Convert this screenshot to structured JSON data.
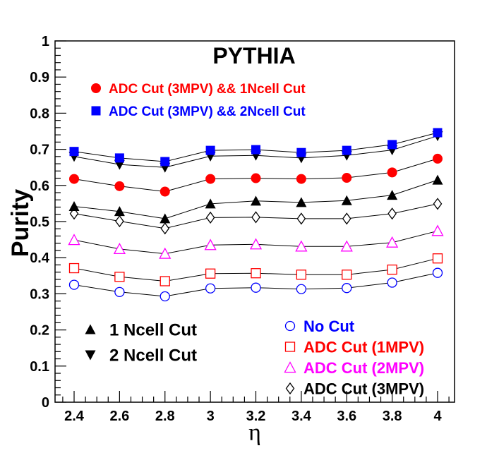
{
  "chart_data": {
    "type": "line",
    "title": "PYTHIA",
    "xlabel": "η",
    "ylabel": "Purity",
    "xlim": [
      2.4,
      4.0
    ],
    "ylim": [
      0,
      1
    ],
    "x": [
      2.4,
      2.6,
      2.8,
      3.0,
      3.2,
      3.4,
      3.6,
      3.8,
      4.0
    ],
    "x_tick_labels": [
      "2.4",
      "2.6",
      "2.8",
      "3",
      "3.2",
      "3.4",
      "3.6",
      "3.8",
      "4"
    ],
    "y_tick_labels": [
      "0",
      "0.1",
      "0.2",
      "0.3",
      "0.4",
      "0.5",
      "0.6",
      "0.7",
      "0.8",
      "0.9",
      "1"
    ],
    "grid": false,
    "series": [
      {
        "key": "nocut",
        "name": "No Cut",
        "color": "#0000ff",
        "marker": "open-circle",
        "values": [
          0.325,
          0.305,
          0.293,
          0.315,
          0.317,
          0.313,
          0.316,
          0.331,
          0.358
        ]
      },
      {
        "key": "adc1",
        "name": "ADC Cut (1MPV)",
        "color": "#ff0000",
        "marker": "open-square",
        "values": [
          0.371,
          0.347,
          0.335,
          0.356,
          0.357,
          0.353,
          0.353,
          0.367,
          0.398
        ]
      },
      {
        "key": "adc2",
        "name": "ADC Cut (2MPV)",
        "color": "#ff00ff",
        "marker": "open-triangle-up",
        "values": [
          0.449,
          0.424,
          0.411,
          0.435,
          0.437,
          0.431,
          0.431,
          0.442,
          0.474
        ]
      },
      {
        "key": "adc3",
        "name": "ADC Cut (3MPV)",
        "color": "#000000",
        "marker": "open-diamond",
        "values": [
          0.522,
          0.501,
          0.481,
          0.511,
          0.512,
          0.508,
          0.508,
          0.522,
          0.549
        ]
      },
      {
        "key": "ncell1",
        "name": "1 Ncell Cut",
        "color": "#000000",
        "marker": "filled-triangle-up",
        "values": [
          0.542,
          0.528,
          0.508,
          0.549,
          0.557,
          0.553,
          0.558,
          0.573,
          0.615
        ]
      },
      {
        "key": "adc3n1",
        "name": "ADC Cut (3MPV) && 1Ncell Cut",
        "color": "#ff0000",
        "marker": "filled-circle",
        "values": [
          0.618,
          0.598,
          0.583,
          0.618,
          0.62,
          0.618,
          0.621,
          0.636,
          0.674
        ]
      },
      {
        "key": "ncell2",
        "name": "2 Ncell Cut",
        "color": "#000000",
        "marker": "filled-triangle-down",
        "values": [
          0.68,
          0.658,
          0.65,
          0.681,
          0.683,
          0.676,
          0.683,
          0.698,
          0.737
        ]
      },
      {
        "key": "adc3n2",
        "name": "ADC Cut (3MPV) && 2Ncell Cut",
        "color": "#0000ff",
        "marker": "filled-square",
        "values": [
          0.694,
          0.676,
          0.666,
          0.697,
          0.699,
          0.691,
          0.697,
          0.713,
          0.746
        ]
      }
    ],
    "legends": {
      "top": [
        "adc3n1",
        "adc3n2"
      ],
      "bottom_left": [
        "ncell1",
        "ncell2"
      ],
      "bottom_right": [
        "nocut",
        "adc1",
        "adc2",
        "adc3"
      ]
    }
  }
}
